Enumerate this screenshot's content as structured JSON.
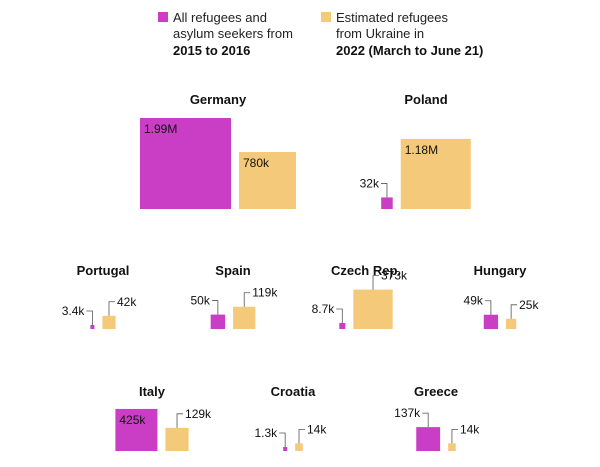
{
  "legend": {
    "series_a": {
      "lines": [
        "All refugees and",
        "asylum seekers from"
      ],
      "bold": "2015 to 2016",
      "color": "#c93ec4"
    },
    "series_b": {
      "lines": [
        "Estimated refugees",
        "from Ukraine in"
      ],
      "bold": "2022 (March to June 21)",
      "color": "#f5c97a"
    }
  },
  "chart_data": {
    "type": "proportional-squares",
    "title": "",
    "series": [
      {
        "name": "All refugees and asylum seekers from 2015 to 2016",
        "color": "#c93ec4"
      },
      {
        "name": "Estimated refugees from Ukraine in 2022 (March to June 21)",
        "color": "#f5c97a"
      }
    ],
    "countries": [
      {
        "name": "Germany",
        "a": 1990000,
        "a_label": "1.99M",
        "b": 780000,
        "b_label": "780k"
      },
      {
        "name": "Poland",
        "a": 32000,
        "a_label": "32k",
        "b": 1180000,
        "b_label": "1.18M"
      },
      {
        "name": "Portugal",
        "a": 3400,
        "a_label": "3.4k",
        "b": 42000,
        "b_label": "42k"
      },
      {
        "name": "Spain",
        "a": 50000,
        "a_label": "50k",
        "b": 119000,
        "b_label": "119k"
      },
      {
        "name": "Czech Rep.",
        "a": 8700,
        "a_label": "8.7k",
        "b": 373000,
        "b_label": "373k"
      },
      {
        "name": "Hungary",
        "a": 49000,
        "a_label": "49k",
        "b": 25000,
        "b_label": "25k"
      },
      {
        "name": "Italy",
        "a": 425000,
        "a_label": "425k",
        "b": 129000,
        "b_label": "129k"
      },
      {
        "name": "Croatia",
        "a": 1300,
        "a_label": "1.3k",
        "b": 14000,
        "b_label": "14k"
      },
      {
        "name": "Greece",
        "a": 137000,
        "a_label": "137k",
        "b": 14000,
        "b_label": "14k"
      }
    ]
  }
}
